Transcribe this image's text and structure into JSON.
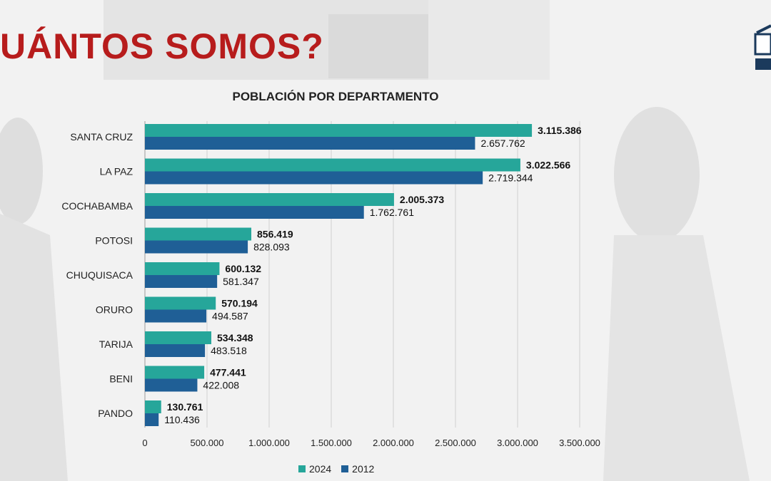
{
  "slide": {
    "title": "UÁNTOS SOMOS?"
  },
  "chart_data": {
    "type": "bar",
    "orientation": "horizontal",
    "title": "POBLACIÓN POR DEPARTAMENTO",
    "xlabel": "",
    "ylabel": "",
    "categories": [
      "SANTA CRUZ",
      "LA PAZ",
      "COCHABAMBA",
      "POTOSI",
      "CHUQUISACA",
      "ORURO",
      "TARIJA",
      "BENI",
      "PANDO"
    ],
    "series": [
      {
        "name": "2024",
        "color": "#26a69a",
        "values": [
          3115386,
          3022566,
          2005373,
          856419,
          600132,
          570194,
          534348,
          477441,
          130761
        ],
        "labels": [
          "3.115.386",
          "3.022.566",
          "2.005.373",
          "856.419",
          "600.132",
          "570.194",
          "534.348",
          "477.441",
          "130.761"
        ]
      },
      {
        "name": "2012",
        "color": "#1f5f96",
        "values": [
          2657762,
          2719344,
          1762761,
          828093,
          581347,
          494587,
          483518,
          422008,
          110436
        ],
        "labels": [
          "2.657.762",
          "2.719.344",
          "1.762.761",
          "828.093",
          "581.347",
          "494.587",
          "483.518",
          "422.008",
          "110.436"
        ]
      }
    ],
    "xlim": [
      0,
      3500000
    ],
    "xticks": [
      0,
      500000,
      1000000,
      1500000,
      2000000,
      2500000,
      3000000,
      3500000
    ],
    "xtick_labels": [
      "0",
      "500.000",
      "1.000.000",
      "1.500.000",
      "2.000.000",
      "2.500.000",
      "3.000.000",
      "3.500.000"
    ],
    "grid": true,
    "legend_position": "bottom"
  }
}
